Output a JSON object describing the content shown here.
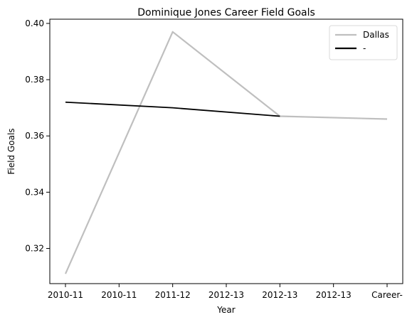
{
  "chart_data": {
    "type": "line",
    "title": "Dominique Jones Career Field Goals",
    "xlabel": "Year",
    "ylabel": "Field Goals",
    "x": [
      "2010-11",
      "2010-11",
      "2011-12",
      "2012-13",
      "2012-13",
      "2012-13",
      "Career-"
    ],
    "ylim": [
      0.3075,
      0.4015
    ],
    "yticks": [
      0.32,
      0.34,
      0.36,
      0.38,
      0.4
    ],
    "ytick_labels": [
      "0.32",
      "0.34",
      "0.36",
      "0.38",
      "0.40"
    ],
    "grid": false,
    "legend_position": "top-right",
    "series": [
      {
        "name": "Dallas",
        "color": "#bfbfbf",
        "points": [
          {
            "i": 0,
            "y": 0.311
          },
          {
            "i": 2,
            "y": 0.397
          },
          {
            "i": 4,
            "y": 0.367
          },
          {
            "i": 6,
            "y": 0.366
          }
        ]
      },
      {
        "name": "-",
        "color": "#000000",
        "points": [
          {
            "i": 0,
            "y": 0.372
          },
          {
            "i": 2,
            "y": 0.37
          },
          {
            "i": 4,
            "y": 0.367
          }
        ]
      }
    ]
  }
}
